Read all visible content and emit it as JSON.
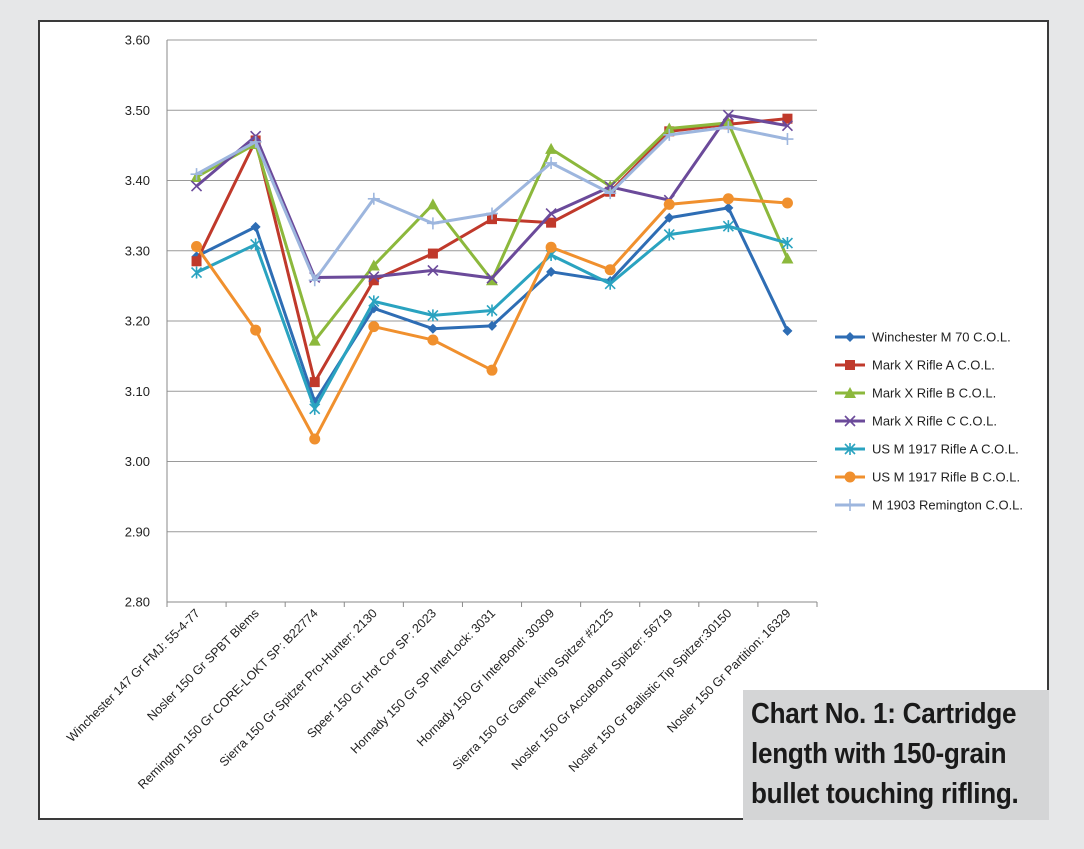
{
  "caption": {
    "lines": [
      "Chart No. 1: Cartridge",
      "length with 150-grain",
      "bullet touching rifling."
    ]
  },
  "chart_data": {
    "type": "line",
    "ylim": [
      2.8,
      3.6
    ],
    "yticks": [
      "2.80",
      "2.90",
      "3.00",
      "3.10",
      "3.20",
      "3.30",
      "3.40",
      "3.50",
      "3.60"
    ],
    "grid": true,
    "legend_position": "right",
    "categories": [
      "Winchester 147 Gr FMJ: 55-4-77",
      "Nosler 150 Gr SPBT Blems",
      "Remington 150 Gr CORE-LOKT SP: B22774",
      "Sierra 150 Gr Spitzer Pro-Hunter: 2130",
      "Speer 150 Gr Hot Cor SP: 2023",
      "Hornady 150 Gr  SP InterLock: 3031",
      "Hornady 150 Gr InterBond: 30309",
      "Sierra 150 Gr Game King Spitzer #2125",
      "Nosler 150 Gr AccuBond Spitzer: 56719",
      "Nosler 150 Gr Ballistic Tip Spitzer:30150",
      "Nosler 150 Gr Partition: 16329"
    ],
    "series": [
      {
        "name": "Winchester M 70 C.O.L.",
        "color": "#2e6db4",
        "marker": "diamond",
        "values": [
          3.292,
          3.334,
          3.085,
          3.218,
          3.189,
          3.193,
          3.27,
          3.257,
          3.347,
          3.361,
          3.186
        ]
      },
      {
        "name": "Mark X Rifle A C.O.L.",
        "color": "#c0392b",
        "marker": "square",
        "values": [
          3.285,
          3.457,
          3.113,
          3.258,
          3.296,
          3.345,
          3.34,
          3.384,
          3.47,
          3.48,
          3.488
        ]
      },
      {
        "name": "Mark X  Rifle B C.O.L.",
        "color": "#8cb83c",
        "marker": "triangle",
        "values": [
          3.405,
          3.452,
          3.172,
          3.279,
          3.366,
          3.258,
          3.445,
          3.392,
          3.474,
          3.482,
          3.289
        ]
      },
      {
        "name": "Mark X Rifle C C.O.L.",
        "color": "#6b4a9a",
        "marker": "x",
        "values": [
          3.392,
          3.463,
          3.262,
          3.263,
          3.272,
          3.261,
          3.353,
          3.391,
          3.372,
          3.493,
          3.478
        ]
      },
      {
        "name": "US M 1917 Rifle A C.O.L.",
        "color": "#2aa3c0",
        "marker": "asterisk",
        "values": [
          3.269,
          3.309,
          3.075,
          3.228,
          3.208,
          3.215,
          3.294,
          3.253,
          3.323,
          3.335,
          3.311
        ]
      },
      {
        "name": "US M 1917 Rifle B C.O.L.",
        "color": "#f0902e",
        "marker": "circle",
        "values": [
          3.306,
          3.187,
          3.032,
          3.192,
          3.173,
          3.13,
          3.305,
          3.273,
          3.366,
          3.374,
          3.368
        ]
      },
      {
        "name": "M 1903 Remington C.O.L.",
        "color": "#9db6de",
        "marker": "plus",
        "values": [
          3.409,
          3.455,
          3.258,
          3.374,
          3.339,
          3.353,
          3.425,
          3.382,
          3.465,
          3.476,
          3.459
        ]
      }
    ]
  }
}
